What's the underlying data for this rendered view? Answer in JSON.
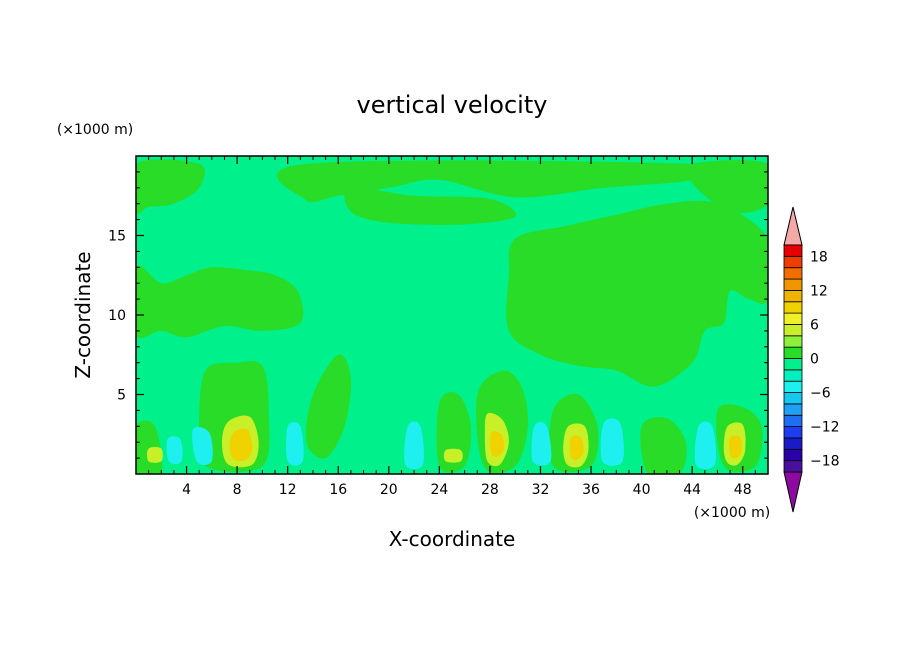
{
  "chart_data": {
    "type": "heatmap",
    "title": "vertical velocity",
    "xlabel": "X-coordinate",
    "ylabel": "Z-coordinate",
    "x_units": "(×1000 m)",
    "y_units": "(×1000 m)",
    "xlim": [
      0,
      50
    ],
    "ylim": [
      0,
      20
    ],
    "x_ticks": [
      4,
      8,
      12,
      16,
      20,
      24,
      28,
      32,
      36,
      40,
      44,
      48
    ],
    "y_ticks": [
      5,
      10,
      15
    ],
    "colorbar": {
      "ticks": [
        18,
        12,
        6,
        0,
        -6,
        -12,
        -18
      ],
      "min": -20,
      "max": 20,
      "levels": [
        {
          "from": -20,
          "to": -18,
          "color": "#4b0fa0"
        },
        {
          "from": -18,
          "to": -16,
          "color": "#2a00a8"
        },
        {
          "from": -16,
          "to": -14,
          "color": "#1a1ac8"
        },
        {
          "from": -14,
          "to": -12,
          "color": "#1e3cf0"
        },
        {
          "from": -12,
          "to": -10,
          "color": "#1e6ef0"
        },
        {
          "from": -10,
          "to": -8,
          "color": "#1ea0f5"
        },
        {
          "from": -8,
          "to": -6,
          "color": "#14c8f0"
        },
        {
          "from": -6,
          "to": -4,
          "color": "#1ef0f0"
        },
        {
          "from": -4,
          "to": -2,
          "color": "#00f0c0"
        },
        {
          "from": -2,
          "to": 0,
          "color": "#00f08c"
        },
        {
          "from": 0,
          "to": 2,
          "color": "#28dc28"
        },
        {
          "from": 2,
          "to": 4,
          "color": "#8cf03c"
        },
        {
          "from": 4,
          "to": 6,
          "color": "#c8f028"
        },
        {
          "from": 6,
          "to": 8,
          "color": "#f0f028"
        },
        {
          "from": 8,
          "to": 10,
          "color": "#f0d200"
        },
        {
          "from": 10,
          "to": 12,
          "color": "#f0b400"
        },
        {
          "from": 12,
          "to": 14,
          "color": "#f09600"
        },
        {
          "from": 14,
          "to": 16,
          "color": "#f06e00"
        },
        {
          "from": 16,
          "to": 18,
          "color": "#f03c00"
        },
        {
          "from": 18,
          "to": 20,
          "color": "#e60000"
        }
      ],
      "over_color": "#f4a8a8",
      "under_color": "#8c0aa0"
    },
    "background_color": "#00f08c",
    "regions": [
      {
        "name": "left-upper-updraft",
        "value": 1,
        "points": [
          [
            0,
            13
          ],
          [
            2,
            12
          ],
          [
            4,
            12.5
          ],
          [
            6,
            13
          ],
          [
            9,
            12.8
          ],
          [
            11,
            12.5
          ],
          [
            12.8,
            11.5
          ],
          [
            13,
            9.5
          ],
          [
            10,
            9
          ],
          [
            7,
            9.3
          ],
          [
            4,
            8.6
          ],
          [
            2,
            9
          ],
          [
            0,
            8.8
          ]
        ]
      },
      {
        "name": "top-left-band",
        "value": 1,
        "points": [
          [
            0,
            19.5
          ],
          [
            5,
            19.5
          ],
          [
            5,
            18
          ],
          [
            3,
            17
          ],
          [
            1,
            16.8
          ],
          [
            0,
            16.5
          ]
        ]
      },
      {
        "name": "top-center-band",
        "value": 1,
        "points": [
          [
            13.5,
            19.5
          ],
          [
            44,
            19.5
          ],
          [
            44,
            18.5
          ],
          [
            37,
            18
          ],
          [
            30,
            17.4
          ],
          [
            24,
            18.5
          ],
          [
            20,
            18
          ],
          [
            16,
            17.5
          ],
          [
            13.5,
            17.2
          ]
        ]
      },
      {
        "name": "top-right-band",
        "value": 1,
        "points": [
          [
            44,
            19.5
          ],
          [
            50,
            19.5
          ],
          [
            50,
            17
          ],
          [
            47,
            16.5
          ],
          [
            44,
            18.3
          ]
        ]
      },
      {
        "name": "tropopause-blob",
        "value": 1,
        "points": [
          [
            17,
            18
          ],
          [
            22,
            17.5
          ],
          [
            28,
            17.3
          ],
          [
            30,
            16.2
          ],
          [
            26,
            15.7
          ],
          [
            20,
            15.8
          ],
          [
            17,
            16.5
          ]
        ]
      },
      {
        "name": "right-upper-updraft",
        "value": 1,
        "points": [
          [
            30,
            14.8
          ],
          [
            34,
            15.6
          ],
          [
            38,
            16.3
          ],
          [
            42,
            17
          ],
          [
            46,
            17
          ],
          [
            50,
            14.8
          ],
          [
            50,
            11
          ],
          [
            48.5,
            11
          ],
          [
            47,
            11.5
          ],
          [
            46.5,
            9.5
          ],
          [
            45,
            9
          ],
          [
            44,
            7
          ],
          [
            41,
            5.5
          ],
          [
            38,
            6.5
          ],
          [
            35,
            6.8
          ],
          [
            32,
            7.5
          ],
          [
            29.5,
            9
          ],
          [
            29.5,
            12.5
          ]
        ]
      },
      {
        "name": "lower-plume-a",
        "value": 1,
        "points": [
          [
            5.5,
            6.5
          ],
          [
            8,
            7
          ],
          [
            10,
            6.8
          ],
          [
            10.5,
            4
          ],
          [
            10,
            0.5
          ],
          [
            5.5,
            0.5
          ],
          [
            5,
            3
          ]
        ]
      },
      {
        "name": "lower-plume-b",
        "value": 1,
        "points": [
          [
            14,
            5
          ],
          [
            16,
            7.5
          ],
          [
            17,
            6
          ],
          [
            16.5,
            3
          ],
          [
            15,
            1
          ],
          [
            13.5,
            2
          ]
        ]
      },
      {
        "name": "lower-plume-c",
        "value": 1,
        "points": [
          [
            27,
            5
          ],
          [
            29,
            6.5
          ],
          [
            30.5,
            5.5
          ],
          [
            31,
            3
          ],
          [
            30,
            0.5
          ],
          [
            27.5,
            0.5
          ]
        ]
      },
      {
        "name": "lower-plume-d",
        "value": 1,
        "points": [
          [
            33,
            4
          ],
          [
            35,
            5
          ],
          [
            36.5,
            3
          ],
          [
            36,
            0.5
          ],
          [
            33,
            0.5
          ]
        ]
      },
      {
        "name": "lower-plume-e",
        "value": 1,
        "points": [
          [
            40,
            3
          ],
          [
            42,
            3.5
          ],
          [
            43.5,
            2
          ],
          [
            43,
            0
          ],
          [
            40.5,
            0
          ]
        ]
      },
      {
        "name": "lower-plume-f",
        "value": 1,
        "points": [
          [
            46,
            4
          ],
          [
            48,
            4.2
          ],
          [
            49.5,
            3
          ],
          [
            49,
            0.5
          ],
          [
            46.5,
            0.5
          ]
        ]
      },
      {
        "name": "lower-plume-g",
        "value": 1,
        "points": [
          [
            24,
            4.5
          ],
          [
            25.5,
            5
          ],
          [
            26.5,
            3
          ],
          [
            26,
            0.5
          ],
          [
            24,
            0.5
          ]
        ]
      },
      {
        "name": "surface-left",
        "value": 1,
        "points": [
          [
            0,
            3
          ],
          [
            1.5,
            3
          ],
          [
            2,
            0
          ],
          [
            0,
            0
          ]
        ]
      },
      {
        "name": "downdraft-1",
        "value": -5,
        "points": [
          [
            4.5,
            2.8
          ],
          [
            5.8,
            2.6
          ],
          [
            6,
            0.8
          ],
          [
            4.8,
            0.8
          ]
        ]
      },
      {
        "name": "downdraft-2",
        "value": -5,
        "points": [
          [
            2.5,
            2.2
          ],
          [
            3.5,
            2.2
          ],
          [
            3.6,
            0.8
          ],
          [
            2.6,
            0.8
          ]
        ]
      },
      {
        "name": "downdraft-3",
        "value": -5,
        "points": [
          [
            12,
            3
          ],
          [
            13,
            3
          ],
          [
            13.2,
            0.8
          ],
          [
            12,
            0.8
          ]
        ]
      },
      {
        "name": "downdraft-4",
        "value": -5,
        "points": [
          [
            21.5,
            3
          ],
          [
            22.5,
            3
          ],
          [
            22.7,
            0.6
          ],
          [
            21.3,
            0.6
          ]
        ]
      },
      {
        "name": "downdraft-5",
        "value": -5,
        "points": [
          [
            31.5,
            3
          ],
          [
            32.5,
            3
          ],
          [
            32.8,
            0.8
          ],
          [
            31.4,
            0.8
          ]
        ]
      },
      {
        "name": "downdraft-6",
        "value": -5,
        "points": [
          [
            37,
            3.2
          ],
          [
            38.3,
            3.2
          ],
          [
            38.5,
            0.8
          ],
          [
            36.9,
            0.8
          ]
        ]
      },
      {
        "name": "downdraft-7",
        "value": -5,
        "points": [
          [
            44.5,
            3
          ],
          [
            45.6,
            3
          ],
          [
            45.8,
            0.6
          ],
          [
            44.3,
            0.6
          ]
        ]
      },
      {
        "name": "updraft-core-1",
        "value": 4,
        "points": [
          [
            7.3,
            3.3
          ],
          [
            9,
            3.6
          ],
          [
            9.7,
            2
          ],
          [
            9.2,
            0.6
          ],
          [
            7.3,
            0.6
          ],
          [
            6.8,
            2
          ]
        ]
      },
      {
        "name": "updraft-core-1b",
        "value": 8,
        "points": [
          [
            7.7,
            2.6
          ],
          [
            8.8,
            2.8
          ],
          [
            9.2,
            1.6
          ],
          [
            8.7,
            0.9
          ],
          [
            7.8,
            0.9
          ],
          [
            7.4,
            1.6
          ]
        ]
      },
      {
        "name": "updraft-core-2",
        "value": 4,
        "points": [
          [
            27.8,
            3.8
          ],
          [
            29,
            3.4
          ],
          [
            29.5,
            2
          ],
          [
            28.8,
            0.6
          ],
          [
            27.8,
            0.8
          ],
          [
            27.6,
            2.5
          ]
        ]
      },
      {
        "name": "updraft-core-2b",
        "value": 8,
        "points": [
          [
            28.1,
            2.6
          ],
          [
            28.9,
            2.5
          ],
          [
            29.1,
            1.6
          ],
          [
            28.6,
            1.1
          ],
          [
            28.1,
            1.3
          ]
        ]
      },
      {
        "name": "updraft-core-3",
        "value": 4,
        "points": [
          [
            34.2,
            3
          ],
          [
            35.5,
            3
          ],
          [
            35.8,
            1.5
          ],
          [
            35.2,
            0.5
          ],
          [
            34.1,
            0.6
          ],
          [
            33.8,
            1.7
          ]
        ]
      },
      {
        "name": "updraft-core-3b",
        "value": 8,
        "points": [
          [
            34.4,
            2.3
          ],
          [
            35.2,
            2.3
          ],
          [
            35.4,
            1.4
          ],
          [
            34.9,
            0.9
          ],
          [
            34.4,
            1.1
          ]
        ]
      },
      {
        "name": "updraft-core-4",
        "value": 4,
        "points": [
          [
            46.8,
            3
          ],
          [
            48,
            3.1
          ],
          [
            48.2,
            1.5
          ],
          [
            47.6,
            0.6
          ],
          [
            46.8,
            0.7
          ],
          [
            46.5,
            1.6
          ]
        ]
      },
      {
        "name": "updraft-core-4b",
        "value": 8,
        "points": [
          [
            47,
            2.3
          ],
          [
            47.8,
            2.3
          ],
          [
            47.9,
            1.4
          ],
          [
            47.5,
            1
          ],
          [
            47,
            1.2
          ]
        ]
      },
      {
        "name": "updraft-core-5",
        "value": 4,
        "points": [
          [
            1,
            1.6
          ],
          [
            2,
            1.6
          ],
          [
            2,
            0.8
          ],
          [
            1,
            0.8
          ]
        ]
      },
      {
        "name": "updraft-core-6",
        "value": 4,
        "points": [
          [
            24.5,
            1.5
          ],
          [
            25.7,
            1.5
          ],
          [
            25.7,
            0.8
          ],
          [
            24.5,
            0.8
          ]
        ]
      }
    ]
  }
}
